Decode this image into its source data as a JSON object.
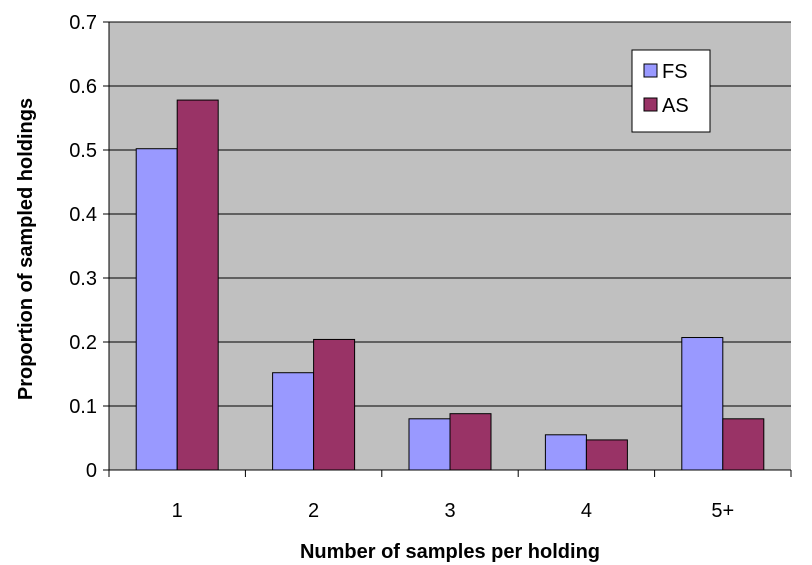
{
  "chart_data": {
    "type": "bar",
    "title": "",
    "xlabel": "Number of samples per holding",
    "ylabel": "Proportion of sampled holdings",
    "categories": [
      "1",
      "2",
      "3",
      "4",
      "5+"
    ],
    "series": [
      {
        "name": "FS",
        "color": "#9999ff",
        "values": [
          0.502,
          0.152,
          0.08,
          0.055,
          0.207
        ]
      },
      {
        "name": "AS",
        "color": "#993366",
        "values": [
          0.578,
          0.204,
          0.088,
          0.047,
          0.08
        ]
      }
    ],
    "ylim": [
      0,
      0.7
    ],
    "yticks": [
      "0",
      "0.1",
      "0.2",
      "0.3",
      "0.4",
      "0.5",
      "0.6",
      "0.7"
    ],
    "grid": true,
    "plot_background": "#c0c0c0",
    "legend_position": "top-right"
  }
}
